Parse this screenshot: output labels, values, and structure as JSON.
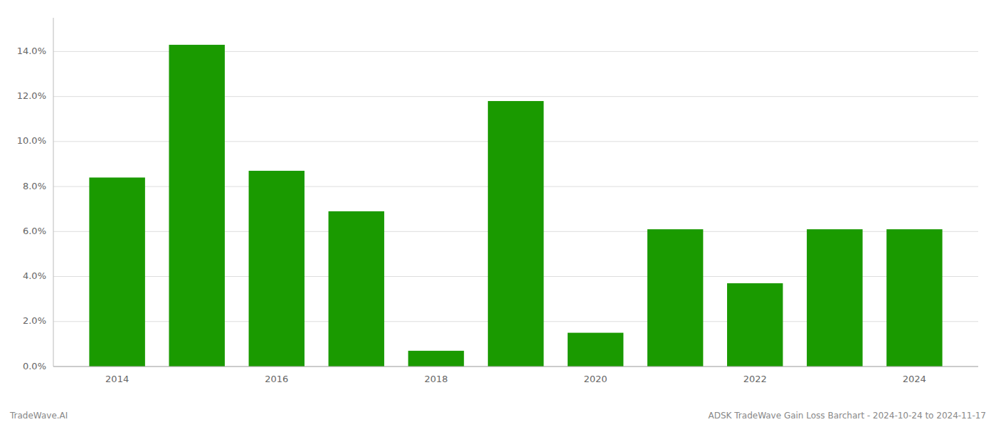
{
  "chart_data": {
    "type": "bar",
    "categories": [
      "2014",
      null,
      "2016",
      null,
      "2018",
      null,
      "2020",
      null,
      "2022",
      null,
      "2024"
    ],
    "values": [
      0.084,
      0.143,
      0.087,
      0.069,
      0.007,
      0.118,
      0.015,
      0.061,
      0.037,
      0.061,
      0.061
    ],
    "color": "#1a9a00",
    "ylim": [
      0,
      0.155
    ],
    "yticks": [
      {
        "value": 0.0,
        "label": "0.0%"
      },
      {
        "value": 0.02,
        "label": "2.0%"
      },
      {
        "value": 0.04,
        "label": "4.0%"
      },
      {
        "value": 0.06,
        "label": "6.0%"
      },
      {
        "value": 0.08,
        "label": "8.0%"
      },
      {
        "value": 0.1,
        "label": "10.0%"
      },
      {
        "value": 0.12,
        "label": "12.0%"
      },
      {
        "value": 0.14,
        "label": "14.0%"
      }
    ],
    "grid": true,
    "annotations": [
      "TradeWave.AI",
      "ADSK TradeWave Gain Loss Barchart - 2024-10-24 to 2024-11-17"
    ]
  }
}
